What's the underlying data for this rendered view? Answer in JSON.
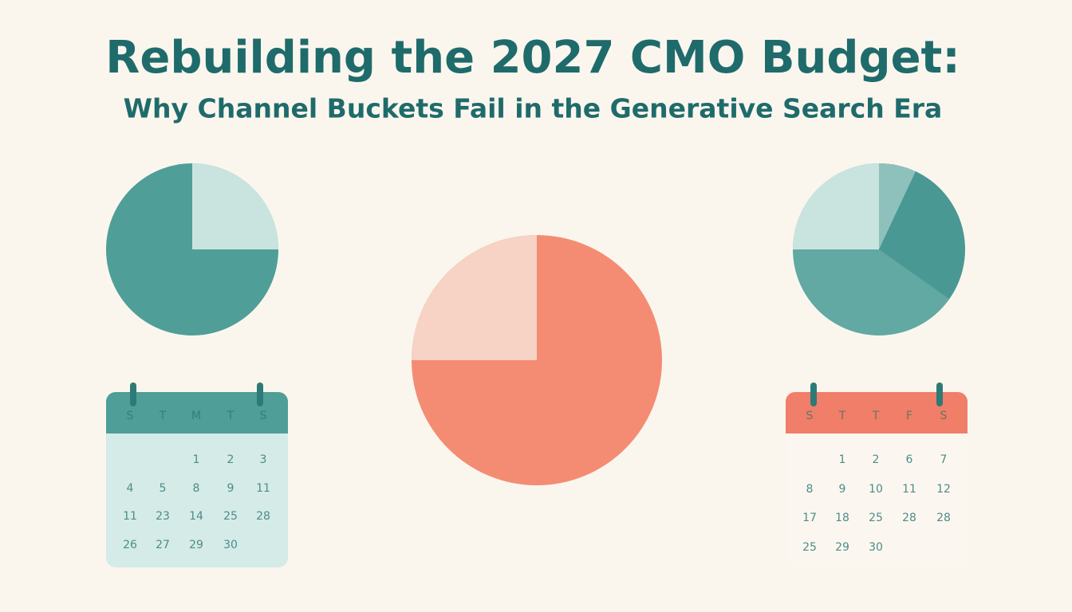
{
  "header": {
    "title": "Rebuilding the 2027 CMO Budget:",
    "subtitle": "Why Channel Buckets Fail in the Generative Search Era"
  },
  "calendars": [
    {
      "weekdays": [
        "S",
        "T",
        "M",
        "T",
        "S"
      ],
      "rows": [
        [
          null,
          null,
          "1",
          "2",
          "3"
        ],
        [
          "4",
          "5",
          "8",
          "9",
          "11"
        ],
        [
          "11",
          "23",
          "14",
          "25",
          "28"
        ],
        [
          "26",
          "27",
          "29",
          "30",
          null
        ]
      ]
    },
    {
      "weekdays": [
        "S",
        "T",
        "T",
        "F",
        "S"
      ],
      "rows": [
        [
          null,
          "1",
          "2",
          "6",
          "7"
        ],
        [
          "8",
          "9",
          "10",
          "11",
          "12"
        ],
        [
          "17",
          "18",
          "25",
          "28",
          "28"
        ],
        [
          "25",
          "29",
          "30",
          null,
          null
        ]
      ]
    }
  ]
}
